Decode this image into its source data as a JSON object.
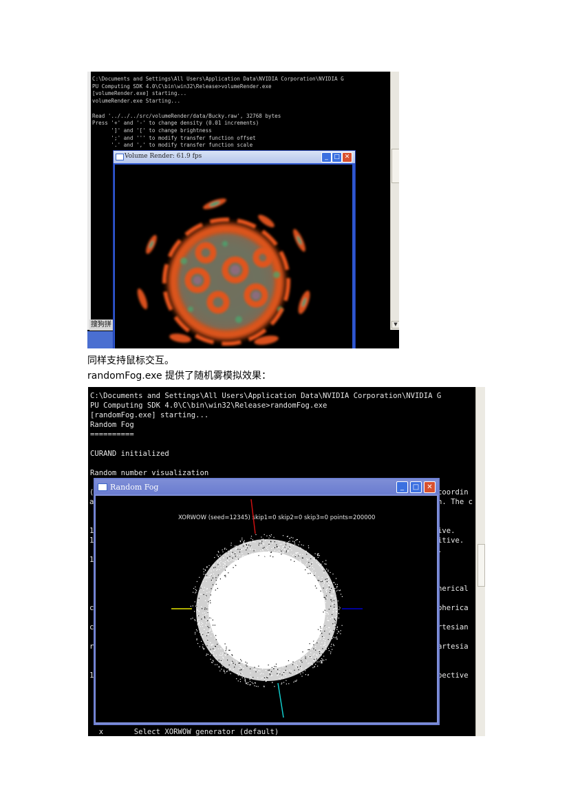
{
  "screenshot1": {
    "console_lines": [
      "C:\\Documents and Settings\\All Users\\Application Data\\NVIDIA Corporation\\NVIDIA G",
      "PU Computing SDK 4.0\\C\\bin\\win32\\Release>volumeRender.exe",
      "[volumeRender.exe] starting...",
      "volumeRender.exe Starting...",
      "",
      "Read '../../../src/volumeRender/data/Bucky.raw', 32768 bytes",
      "Press '+' and '-' to change density (0.01 increments)",
      "      ']' and '[' to change brightness",
      "      ';' and ''' to modify transfer function offset",
      "      '.' and ',' to modify transfer function scale"
    ],
    "ime_label": "搜狗拼",
    "window": {
      "title": "Volume Render: 61.9 fps",
      "minimize_glyph": "_",
      "maximize_glyph": "□",
      "close_glyph": "✕"
    },
    "scroll_down_glyph": "▼"
  },
  "caption1": "同样支持鼠标交互。",
  "caption2": {
    "exe_name": "randomFog.exe",
    "text": " 提供了随机雾模拟效果："
  },
  "screenshot2": {
    "console_lines": [
      "C:\\Documents and Settings\\All Users\\Application Data\\NVIDIA Corporation\\NVIDIA G",
      "PU Computing SDK 4.0\\C\\bin\\win32\\Release>randomFog.exe",
      "[randomFog.exe] starting...",
      "Random Fog",
      "==========",
      "",
      "CURAND initialized",
      "",
      "Random number visualization"
    ],
    "right_fragments": [
      "coordin",
      "n. The c",
      "",
      "",
      "ive.",
      "itive.",
      ".",
      "",
      "",
      "",
      "herical",
      "",
      "pherica",
      "",
      "rtesian",
      "",
      "artesia",
      "",
      "",
      "pective"
    ],
    "left_fragments": [
      "(",
      "a",
      "",
      "",
      "1",
      "1",
      "",
      "1",
      "",
      "",
      "",
      "",
      "c",
      "",
      "c",
      "",
      "r",
      "",
      "",
      "1"
    ],
    "bottom_line": "  x       Select XORWOW generator (default)",
    "window": {
      "title": "Random Fog",
      "overlay_label": "XORWOW (seed=12345) skip1=0 skip2=0 skip3=0 points=200000",
      "minimize_glyph": "_",
      "maximize_glyph": "□",
      "close_glyph": "✕"
    }
  },
  "colors": {
    "console_background": "#000000",
    "xp_title_blue": "#2f57cf",
    "axis_x_positive": "#0000cc",
    "axis_x_negative": "#e6e600",
    "axis_y_positive": "#cc1111",
    "axis_y_negative": "#11cccc"
  }
}
